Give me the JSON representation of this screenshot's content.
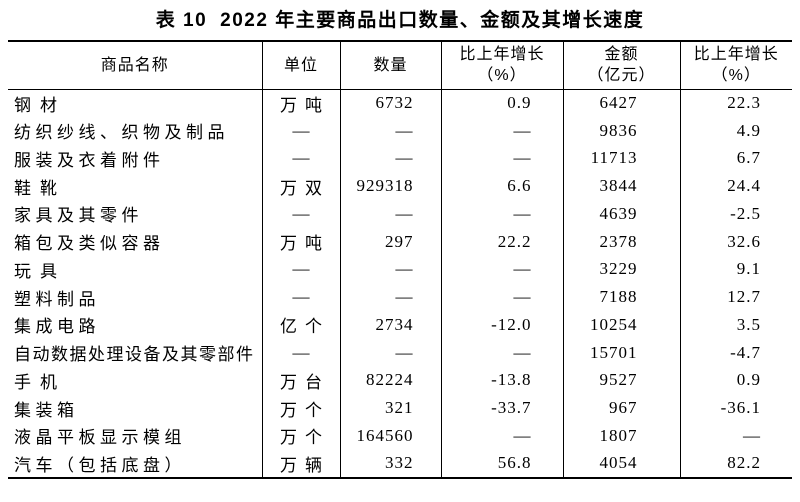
{
  "page": {
    "background_color": "#ffffff",
    "text_color": "#000000",
    "border_color": "#000000"
  },
  "title": {
    "label": "表 10",
    "text": "2022 年主要商品出口数量、金额及其增长速度"
  },
  "table": {
    "header": {
      "name": "商品名称",
      "unit": "单位",
      "qty": "数量",
      "qty_growth_line1": "比上年增长",
      "qty_growth_line2": "（%）",
      "amount_line1": "金额",
      "amount_line2": "（亿元）",
      "amount_growth_line1": "比上年增长",
      "amount_growth_line2": "（%）"
    },
    "rows": [
      {
        "name": "钢材",
        "unit": "万吨",
        "qty": "6732",
        "qty_growth": "0.9",
        "amount": "6427",
        "amount_growth": "22.3"
      },
      {
        "name": "纺织纱线、织物及制品",
        "unit": "—",
        "qty": "—",
        "qty_growth": "—",
        "amount": "9836",
        "amount_growth": "4.9"
      },
      {
        "name": "服装及衣着附件",
        "unit": "—",
        "qty": "—",
        "qty_growth": "—",
        "amount": "11713",
        "amount_growth": "6.7"
      },
      {
        "name": "鞋靴",
        "unit": "万双",
        "qty": "929318",
        "qty_growth": "6.6",
        "amount": "3844",
        "amount_growth": "24.4"
      },
      {
        "name": "家具及其零件",
        "unit": "—",
        "qty": "—",
        "qty_growth": "—",
        "amount": "4639",
        "amount_growth": "-2.5"
      },
      {
        "name": "箱包及类似容器",
        "unit": "万吨",
        "qty": "297",
        "qty_growth": "22.2",
        "amount": "2378",
        "amount_growth": "32.6"
      },
      {
        "name": "玩具",
        "unit": "—",
        "qty": "—",
        "qty_growth": "—",
        "amount": "3229",
        "amount_growth": "9.1"
      },
      {
        "name": "塑料制品",
        "unit": "—",
        "qty": "—",
        "qty_growth": "—",
        "amount": "7188",
        "amount_growth": "12.7"
      },
      {
        "name": "集成电路",
        "unit": "亿个",
        "qty": "2734",
        "qty_growth": "-12.0",
        "amount": "10254",
        "amount_growth": "3.5"
      },
      {
        "name": "自动数据处理设备及其零部件",
        "unit": "—",
        "qty": "—",
        "qty_growth": "—",
        "amount": "15701",
        "amount_growth": "-4.7"
      },
      {
        "name": "手机",
        "unit": "万台",
        "qty": "82224",
        "qty_growth": "-13.8",
        "amount": "9527",
        "amount_growth": "0.9"
      },
      {
        "name": "集装箱",
        "unit": "万个",
        "qty": "321",
        "qty_growth": "-33.7",
        "amount": "967",
        "amount_growth": "-36.1"
      },
      {
        "name": "液晶平板显示模组",
        "unit": "万个",
        "qty": "164560",
        "qty_growth": "—",
        "amount": "1807",
        "amount_growth": "—"
      },
      {
        "name": "汽车（包括底盘）",
        "unit": "万辆",
        "qty": "332",
        "qty_growth": "56.8",
        "amount": "4054",
        "amount_growth": "82.2"
      }
    ]
  }
}
